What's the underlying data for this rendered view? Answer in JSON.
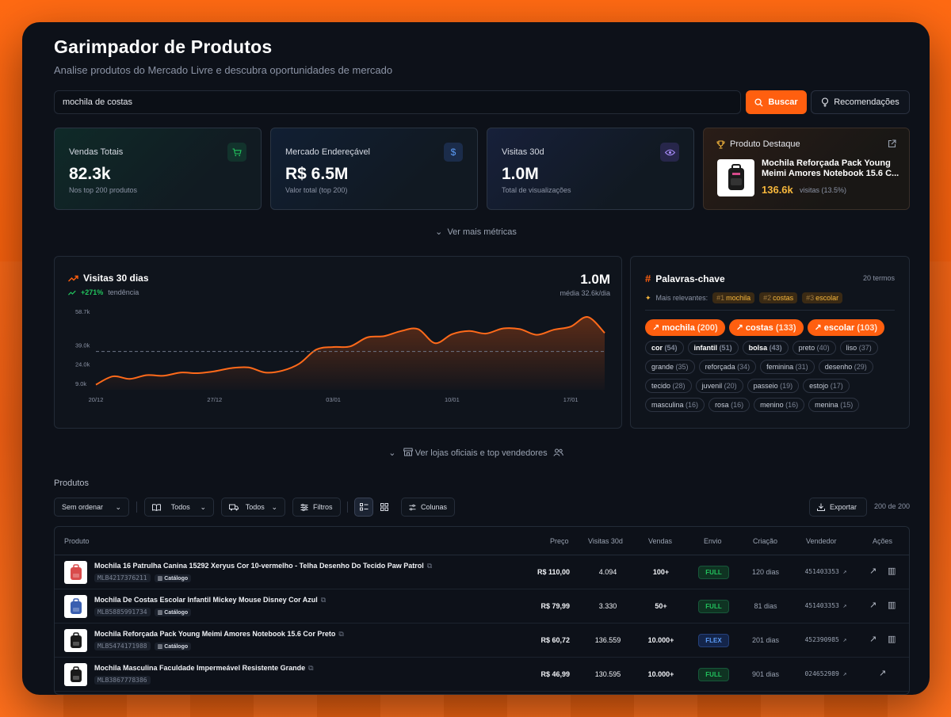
{
  "header": {
    "title": "Garimpador de Produtos",
    "subtitle": "Analise produtos do Mercado Livre e descubra oportunidades de mercado"
  },
  "search": {
    "value": "mochila de costas"
  },
  "buttons": {
    "search": "Buscar",
    "recommendations": "Recomendações"
  },
  "metrics": [
    {
      "label": "Vendas Totais",
      "value": "82.3k",
      "sub": "Nos top 200 produtos",
      "icon": "cart-icon"
    },
    {
      "label": "Mercado Endereçável",
      "value": "R$ 6.5M",
      "sub": "Valor total (top 200)",
      "icon": "dollar-icon"
    },
    {
      "label": "Visitas 30d",
      "value": "1.0M",
      "sub": "Total de visualizações",
      "icon": "eye-icon"
    }
  ],
  "featured": {
    "label": "Produto Destaque",
    "name": "Mochila Reforçada Pack Young Meimi Amores Notebook 15.6 C...",
    "value": "136.6k",
    "value_sub": "visitas (13.5%)"
  },
  "more_metrics": "Ver mais métricas",
  "visits_chart": {
    "title": "Visitas 30 dias",
    "trend_pct": "+271%",
    "trend_label": "tendência",
    "total": "1.0M",
    "average": "média 32.6k/dia"
  },
  "chart_data": {
    "type": "area",
    "title": "Visitas 30 dias",
    "x": [
      "20/12",
      "21/12",
      "22/12",
      "23/12",
      "24/12",
      "25/12",
      "26/12",
      "27/12",
      "28/12",
      "29/12",
      "30/12",
      "31/12",
      "01/01",
      "02/01",
      "03/01",
      "04/01",
      "05/01",
      "06/01",
      "07/01",
      "08/01",
      "09/01",
      "10/01",
      "11/01",
      "12/01",
      "13/01",
      "14/01",
      "15/01",
      "16/01",
      "17/01",
      "18/01",
      "19/01"
    ],
    "x_ticks": [
      "20/12",
      "27/12",
      "03/01",
      "10/01",
      "17/01"
    ],
    "y_ticks": [
      "58.7k",
      "39.0k",
      "24.0k",
      "9.0k"
    ],
    "values": [
      8.0,
      14.5,
      12.5,
      15.5,
      15.0,
      17.5,
      17.0,
      18.5,
      21.0,
      21.5,
      17.5,
      19.0,
      24.5,
      35.5,
      37.5,
      38.0,
      45.0,
      46.0,
      50.0,
      51.5,
      40.5,
      47.5,
      50.0,
      48.0,
      52.0,
      51.5,
      47.0,
      51.0,
      53.5,
      61.0,
      48.5
    ],
    "average_line": 34.0,
    "ylim": [
      4.0,
      66.0
    ]
  },
  "keywords": {
    "title": "Palavras-chave",
    "count": "20 termos",
    "relevant_label": "Mais relevantes:",
    "relevant": [
      {
        "rank": "#1",
        "word": "mochila"
      },
      {
        "rank": "#2",
        "word": "costas"
      },
      {
        "rank": "#3",
        "word": "escolar"
      }
    ],
    "chips": [
      {
        "word": "mochila",
        "count": "(200)",
        "tier": "top"
      },
      {
        "word": "costas",
        "count": "(133)",
        "tier": "top"
      },
      {
        "word": "escolar",
        "count": "(103)",
        "tier": "top"
      },
      {
        "word": "cor",
        "count": "(54)",
        "tier": "mid"
      },
      {
        "word": "infantil",
        "count": "(51)",
        "tier": "mid"
      },
      {
        "word": "bolsa",
        "count": "(43)",
        "tier": "mid"
      },
      {
        "word": "preto",
        "count": "(40)",
        "tier": "low"
      },
      {
        "word": "liso",
        "count": "(37)",
        "tier": "low"
      },
      {
        "word": "grande",
        "count": "(35)",
        "tier": "low"
      },
      {
        "word": "reforçada",
        "count": "(34)",
        "tier": "low"
      },
      {
        "word": "feminina",
        "count": "(31)",
        "tier": "low"
      },
      {
        "word": "desenho",
        "count": "(29)",
        "tier": "low"
      },
      {
        "word": "tecido",
        "count": "(28)",
        "tier": "low"
      },
      {
        "word": "juvenil",
        "count": "(20)",
        "tier": "low"
      },
      {
        "word": "passeio",
        "count": "(19)",
        "tier": "low"
      },
      {
        "word": "estojo",
        "count": "(17)",
        "tier": "low"
      },
      {
        "word": "masculina",
        "count": "(16)",
        "tier": "low"
      },
      {
        "word": "rosa",
        "count": "(16)",
        "tier": "low"
      },
      {
        "word": "menino",
        "count": "(16)",
        "tier": "low"
      },
      {
        "word": "menina",
        "count": "(15)",
        "tier": "low"
      }
    ]
  },
  "stores_link": "Ver lojas oficiais e top vendedores",
  "products": {
    "section_title": "Produtos",
    "toolbar": {
      "sort": "Sem ordenar",
      "filter1": "Todos",
      "filter2": "Todos",
      "filters": "Filtros",
      "columns": "Colunas",
      "export": "Exportar",
      "count": "200 de 200"
    },
    "columns": [
      "Produto",
      "Preço",
      "Visitas 30d",
      "Vendas",
      "Envio",
      "Criação",
      "Vendedor",
      "Ações"
    ],
    "rows": [
      {
        "name": "Mochila 16 Patrulha Canina 15292 Xeryus Cor 10-vermelho - Telha Desenho Do Tecido Paw Patrol",
        "id": "MLB4217376211",
        "catalog": "Catálogo",
        "price": "R$ 110,00",
        "visits": "4.094",
        "sales": "100+",
        "ship": "FULL",
        "created": "120 dias",
        "vendor": "451403353",
        "thumb_color": "#d94b4b"
      },
      {
        "name": "Mochila De Costas Escolar Infantil Mickey Mouse Disney Cor Azul",
        "id": "MLB5885991734",
        "catalog": "Catálogo",
        "price": "R$ 79,99",
        "visits": "3.330",
        "sales": "50+",
        "ship": "FULL",
        "created": "81 dias",
        "vendor": "451403353",
        "thumb_color": "#3a5fb0"
      },
      {
        "name": "Mochila Reforçada Pack Young Meimi Amores Notebook 15.6 Cor Preto",
        "id": "MLB5474171988",
        "catalog": "Catálogo",
        "price": "R$ 60,72",
        "visits": "136.559",
        "sales": "10.000+",
        "ship": "FLEX",
        "created": "201 dias",
        "vendor": "452390985",
        "thumb_color": "#1a1a1a"
      },
      {
        "name": "Mochila Masculina Faculdade Impermeável Resistente Grande",
        "id": "MLB3867778386",
        "catalog": "",
        "price": "R$ 46,99",
        "visits": "130.595",
        "sales": "10.000+",
        "ship": "FULL",
        "created": "901 dias",
        "vendor": "024652989",
        "thumb_color": "#1a1a1a"
      }
    ]
  },
  "colors": {
    "accent": "#ff5f0f",
    "background": "#0d1119",
    "green": "#22c55e",
    "gold": "#f6b73c"
  }
}
